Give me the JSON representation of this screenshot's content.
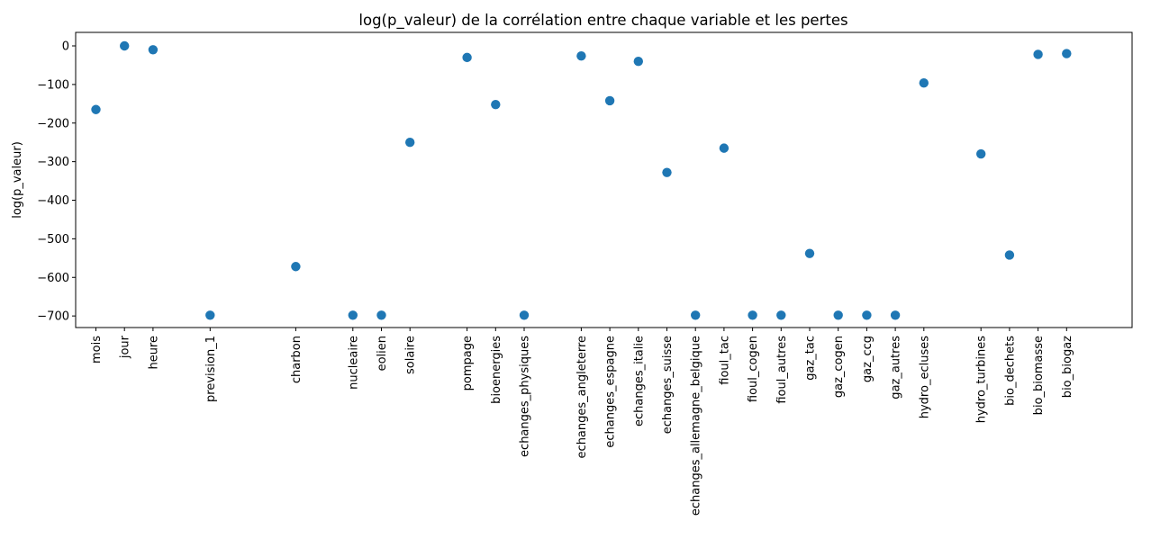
{
  "chart_data": {
    "type": "scatter",
    "title": "log(p_valeur) de la corrélation entre chaque variable et les pertes",
    "xlabel": "",
    "ylabel": "log(p_valeur)",
    "ylim": [
      -730,
      35
    ],
    "yticks": [
      0,
      -100,
      -200,
      -300,
      -400,
      -500,
      -600,
      -700
    ],
    "ytick_labels": [
      "0",
      "−100",
      "−200",
      "−300",
      "−400",
      "−500",
      "−600",
      "−700"
    ],
    "grid": false,
    "marker_color": "#1f77b4",
    "points": [
      {
        "x": 1,
        "label": "mois",
        "y": -165
      },
      {
        "x": 2,
        "label": "jour",
        "y": 0
      },
      {
        "x": 3,
        "label": "heure",
        "y": -10
      },
      {
        "x": 5,
        "label": "prevision_1",
        "y": -698
      },
      {
        "x": 8,
        "label": "charbon",
        "y": -572
      },
      {
        "x": 10,
        "label": "nucleaire",
        "y": -698
      },
      {
        "x": 11,
        "label": "eolien",
        "y": -698
      },
      {
        "x": 12,
        "label": "solaire",
        "y": -250
      },
      {
        "x": 14,
        "label": "pompage",
        "y": -30
      },
      {
        "x": 15,
        "label": "bioenergies",
        "y": -152
      },
      {
        "x": 16,
        "label": "echanges_physiques",
        "y": -698
      },
      {
        "x": 18,
        "label": "echanges_angleterre",
        "y": -26
      },
      {
        "x": 19,
        "label": "echanges_espagne",
        "y": -142
      },
      {
        "x": 20,
        "label": "echanges_italie",
        "y": -40
      },
      {
        "x": 21,
        "label": "echanges_suisse",
        "y": -328
      },
      {
        "x": 22,
        "label": "echanges_allemagne_belgique",
        "y": -698
      },
      {
        "x": 23,
        "label": "fioul_tac",
        "y": -265
      },
      {
        "x": 24,
        "label": "fioul_cogen",
        "y": -698
      },
      {
        "x": 25,
        "label": "fioul_autres",
        "y": -698
      },
      {
        "x": 26,
        "label": "gaz_tac",
        "y": -538
      },
      {
        "x": 27,
        "label": "gaz_cogen",
        "y": -698
      },
      {
        "x": 28,
        "label": "gaz_ccg",
        "y": -698
      },
      {
        "x": 29,
        "label": "gaz_autres",
        "y": -698
      },
      {
        "x": 30,
        "label": "hydro_ecluses",
        "y": -96
      },
      {
        "x": 32,
        "label": "hydro_turbines",
        "y": -280
      },
      {
        "x": 33,
        "label": "bio_dechets",
        "y": -542
      },
      {
        "x": 34,
        "label": "bio_biomasse",
        "y": -22
      },
      {
        "x": 35,
        "label": "bio_biogaz",
        "y": -20
      }
    ]
  }
}
